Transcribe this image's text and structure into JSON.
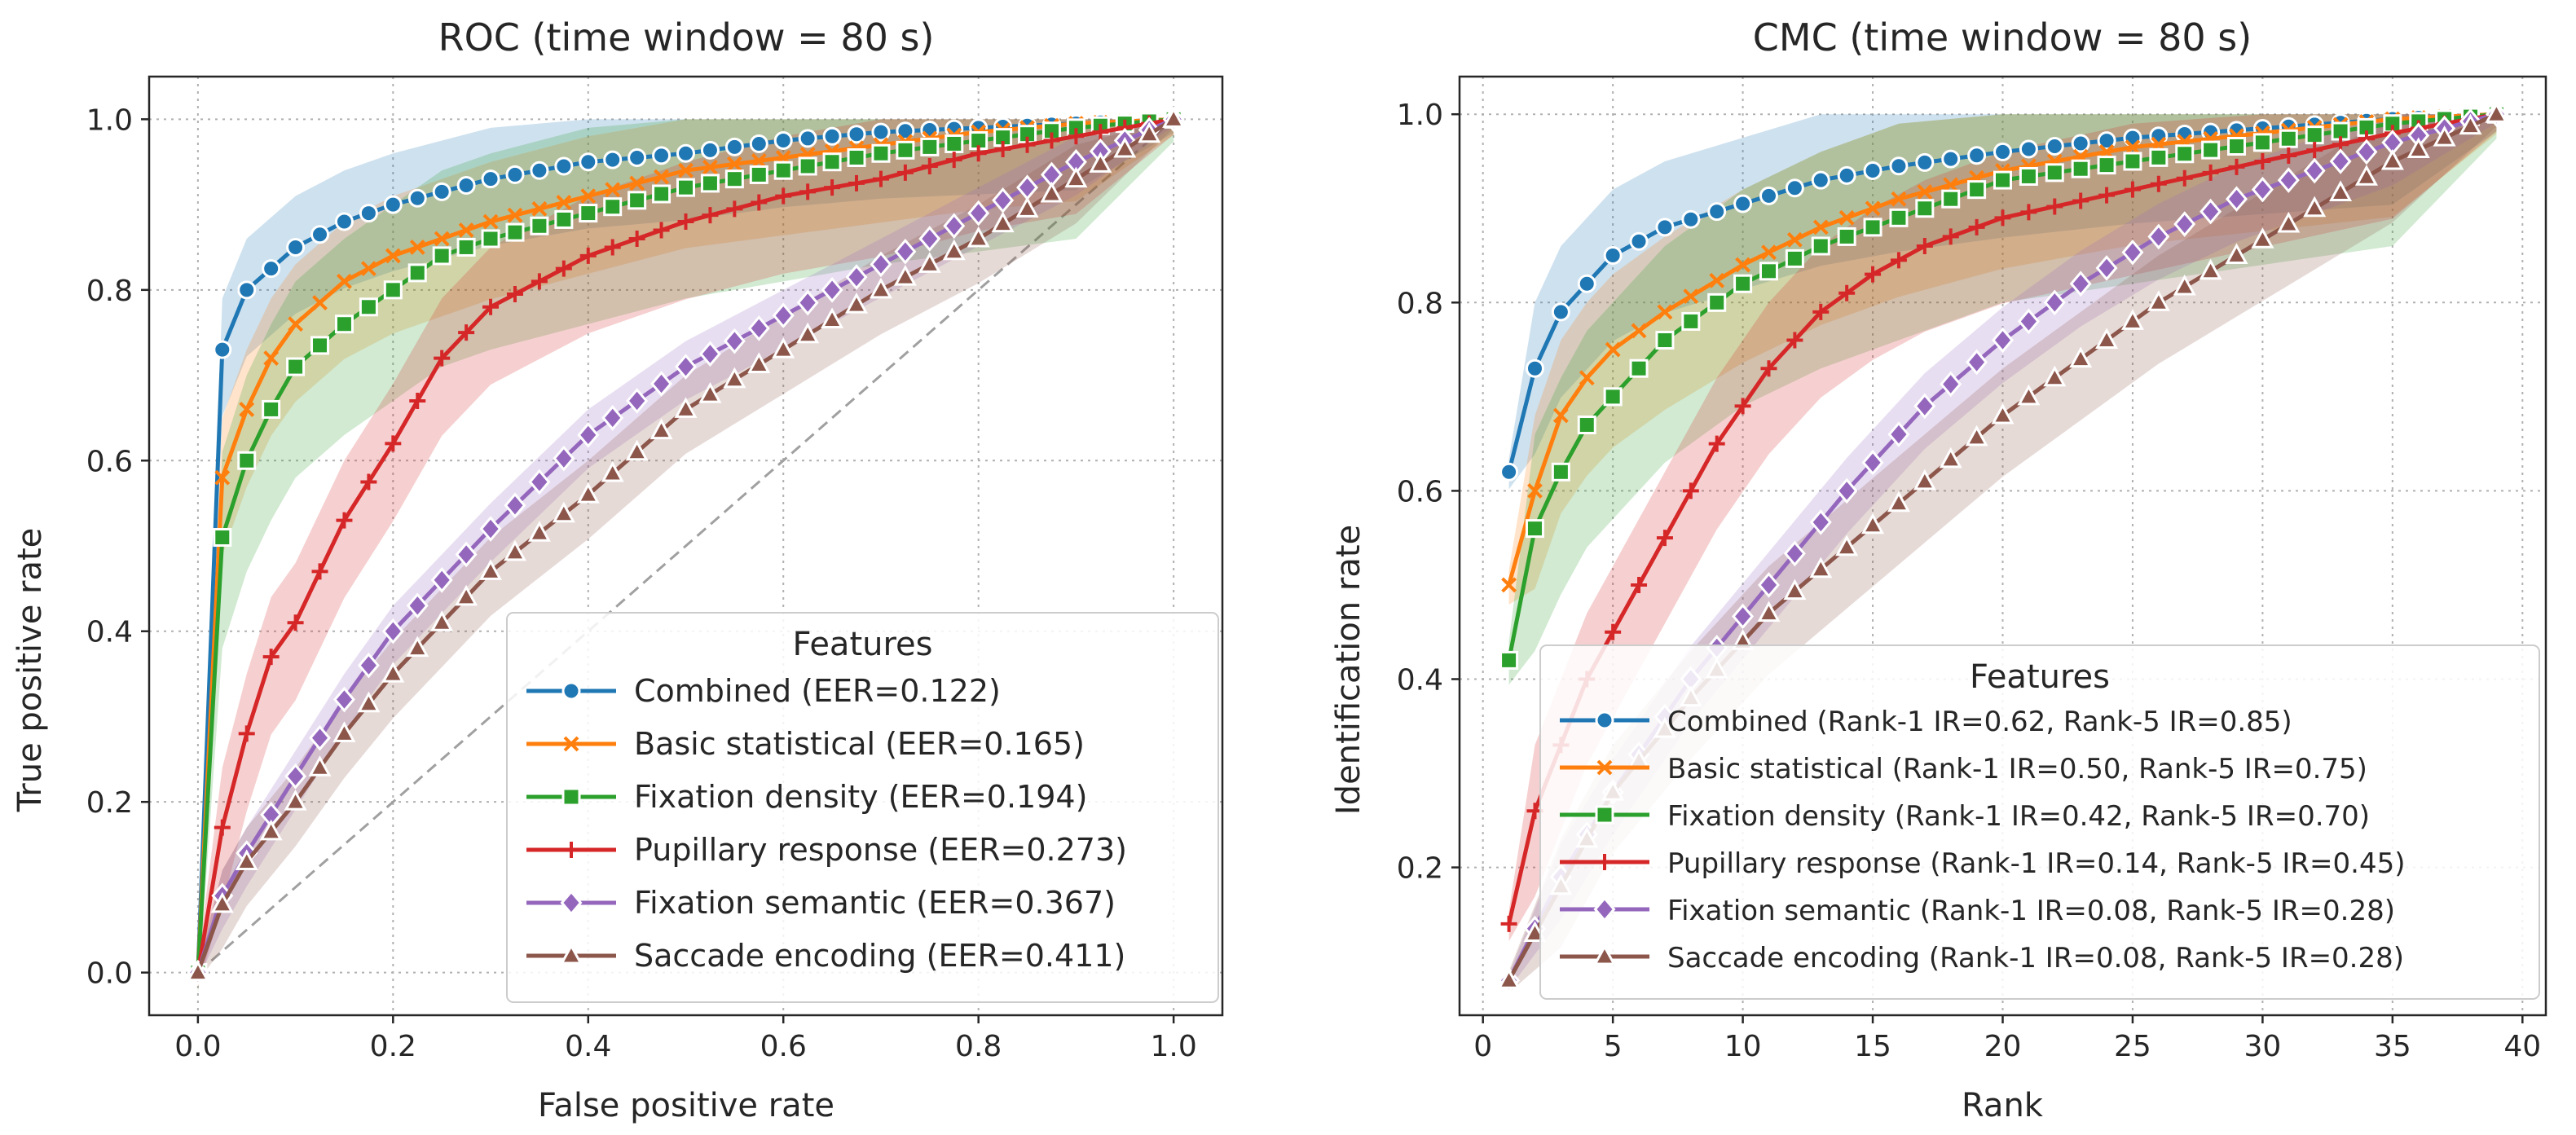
{
  "chart_data": [
    {
      "type": "line",
      "title": "ROC (time window = 80 s)",
      "xlabel": "False positive rate",
      "ylabel": "True positive rate",
      "xlim": [
        -0.05,
        1.05
      ],
      "ylim": [
        -0.05,
        1.05
      ],
      "xticks": [
        0.0,
        0.2,
        0.4,
        0.6,
        0.8,
        1.0
      ],
      "xtick_labels": [
        "0.0",
        "0.2",
        "0.4",
        "0.6",
        "0.8",
        "1.0"
      ],
      "yticks": [
        0.0,
        0.2,
        0.4,
        0.6,
        0.8,
        1.0
      ],
      "ytick_labels": [
        "0.0",
        "0.2",
        "0.4",
        "0.6",
        "0.8",
        "1.0"
      ],
      "grid": true,
      "diagonal": true,
      "legend_title": "Features",
      "legend_position": "lower-right",
      "series": [
        {
          "name": "Combined (EER=0.122)",
          "color": "#1f77b4",
          "marker": "circle",
          "x": [
            0,
            0.025,
            0.05,
            0.1,
            0.15,
            0.2,
            0.3,
            0.4,
            0.5,
            0.6,
            0.7,
            0.8,
            0.9,
            1.0
          ],
          "y": [
            0,
            0.73,
            0.8,
            0.85,
            0.88,
            0.9,
            0.93,
            0.95,
            0.96,
            0.975,
            0.985,
            0.99,
            0.995,
            1.0
          ],
          "band": 0.06
        },
        {
          "name": "Basic statistical (EER=0.165)",
          "color": "#ff7f0e",
          "marker": "x",
          "x": [
            0,
            0.025,
            0.05,
            0.075,
            0.1,
            0.15,
            0.2,
            0.3,
            0.4,
            0.5,
            0.6,
            0.7,
            0.8,
            0.9,
            1.0
          ],
          "y": [
            0,
            0.58,
            0.66,
            0.72,
            0.76,
            0.81,
            0.84,
            0.88,
            0.91,
            0.94,
            0.955,
            0.97,
            0.985,
            0.995,
            1.0
          ],
          "band": 0.07
        },
        {
          "name": "Fixation density (EER=0.194)",
          "color": "#2ca02c",
          "marker": "square",
          "x": [
            0,
            0.025,
            0.05,
            0.075,
            0.1,
            0.15,
            0.2,
            0.25,
            0.3,
            0.4,
            0.5,
            0.6,
            0.7,
            0.8,
            0.9,
            1.0
          ],
          "y": [
            0,
            0.51,
            0.6,
            0.66,
            0.71,
            0.76,
            0.8,
            0.84,
            0.86,
            0.89,
            0.92,
            0.94,
            0.96,
            0.975,
            0.99,
            1.0
          ],
          "band": 0.1
        },
        {
          "name": "Pupillary response (EER=0.273)",
          "color": "#d62728",
          "marker": "plus",
          "x": [
            0,
            0.025,
            0.05,
            0.075,
            0.1,
            0.15,
            0.2,
            0.25,
            0.3,
            0.35,
            0.4,
            0.5,
            0.6,
            0.7,
            0.8,
            0.9,
            1.0
          ],
          "y": [
            0,
            0.17,
            0.28,
            0.37,
            0.41,
            0.53,
            0.62,
            0.72,
            0.78,
            0.81,
            0.84,
            0.88,
            0.91,
            0.93,
            0.96,
            0.98,
            1.0
          ],
          "band": 0.07
        },
        {
          "name": "Fixation semantic (EER=0.367)",
          "color": "#9467bd",
          "marker": "diamond",
          "x": [
            0,
            0.025,
            0.05,
            0.1,
            0.15,
            0.2,
            0.3,
            0.4,
            0.5,
            0.6,
            0.7,
            0.8,
            0.9,
            1.0
          ],
          "y": [
            0,
            0.09,
            0.14,
            0.23,
            0.32,
            0.4,
            0.52,
            0.63,
            0.71,
            0.77,
            0.83,
            0.89,
            0.95,
            1.0
          ],
          "band": 0.03
        },
        {
          "name": "Saccade encoding (EER=0.411)",
          "color": "#8c564b",
          "marker": "triangle",
          "x": [
            0,
            0.025,
            0.05,
            0.1,
            0.15,
            0.2,
            0.3,
            0.4,
            0.5,
            0.6,
            0.7,
            0.8,
            0.9,
            1.0
          ],
          "y": [
            0,
            0.08,
            0.13,
            0.2,
            0.28,
            0.35,
            0.47,
            0.56,
            0.66,
            0.73,
            0.8,
            0.86,
            0.93,
            1.0
          ],
          "band": 0.04
        }
      ]
    },
    {
      "type": "line",
      "title": "CMC (time window = 80 s)",
      "xlabel": "Rank",
      "ylabel": "Identification rate",
      "xlim": [
        -0.9,
        40.9
      ],
      "ylim": [
        0.043,
        1.04
      ],
      "xticks": [
        0,
        5,
        10,
        15,
        20,
        25,
        30,
        35,
        40
      ],
      "xtick_labels": [
        "0",
        "5",
        "10",
        "15",
        "20",
        "25",
        "30",
        "35",
        "40"
      ],
      "yticks": [
        0.2,
        0.4,
        0.6,
        0.8,
        1.0
      ],
      "ytick_labels": [
        "0.2",
        "0.4",
        "0.6",
        "0.8",
        "1.0"
      ],
      "grid": true,
      "legend_title": "Features",
      "legend_position": "lower-right",
      "series": [
        {
          "name": "Combined (Rank-1 IR=0.62, Rank-5 IR=0.85)",
          "color": "#1f77b4",
          "marker": "circle",
          "x": [
            1,
            2,
            3,
            4,
            5,
            7,
            10,
            13,
            16,
            20,
            25,
            30,
            35,
            39
          ],
          "y": [
            0.62,
            0.73,
            0.79,
            0.82,
            0.85,
            0.88,
            0.905,
            0.93,
            0.945,
            0.96,
            0.975,
            0.985,
            0.995,
            1.0
          ],
          "band": 0.07
        },
        {
          "name": "Basic statistical (Rank-1 IR=0.50, Rank-5 IR=0.75)",
          "color": "#ff7f0e",
          "marker": "x",
          "x": [
            1,
            2,
            3,
            4,
            5,
            7,
            10,
            13,
            16,
            20,
            25,
            30,
            35,
            39
          ],
          "y": [
            0.5,
            0.6,
            0.68,
            0.72,
            0.75,
            0.79,
            0.84,
            0.88,
            0.91,
            0.94,
            0.965,
            0.98,
            0.995,
            1.0
          ],
          "band": 0.08
        },
        {
          "name": "Fixation density (Rank-1 IR=0.42, Rank-5 IR=0.70)",
          "color": "#2ca02c",
          "marker": "square",
          "x": [
            1,
            2,
            3,
            4,
            5,
            7,
            10,
            13,
            16,
            20,
            25,
            30,
            35,
            39
          ],
          "y": [
            0.42,
            0.56,
            0.62,
            0.67,
            0.7,
            0.76,
            0.82,
            0.86,
            0.89,
            0.93,
            0.95,
            0.97,
            0.99,
            1.0
          ],
          "band": 0.1
        },
        {
          "name": "Pupillary response (Rank-1 IR=0.14, Rank-5 IR=0.45)",
          "color": "#d62728",
          "marker": "plus",
          "x": [
            1,
            2,
            3,
            4,
            5,
            7,
            9,
            11,
            13,
            15,
            17,
            20,
            25,
            30,
            35,
            39
          ],
          "y": [
            0.14,
            0.26,
            0.33,
            0.4,
            0.45,
            0.55,
            0.65,
            0.73,
            0.79,
            0.83,
            0.86,
            0.89,
            0.92,
            0.95,
            0.98,
            1.0
          ],
          "band": 0.07
        },
        {
          "name": "Fixation semantic (Rank-1 IR=0.08, Rank-5 IR=0.28)",
          "color": "#9467bd",
          "marker": "diamond",
          "x": [
            1,
            3,
            5,
            8,
            11,
            14,
            17,
            20,
            23,
            26,
            29,
            32,
            35,
            39
          ],
          "y": [
            0.08,
            0.19,
            0.28,
            0.4,
            0.5,
            0.6,
            0.69,
            0.76,
            0.82,
            0.87,
            0.91,
            0.94,
            0.97,
            1.0
          ],
          "band": 0.035
        },
        {
          "name": "Saccade encoding (Rank-1 IR=0.08, Rank-5 IR=0.28)",
          "color": "#8c564b",
          "marker": "triangle",
          "x": [
            1,
            3,
            5,
            8,
            11,
            14,
            17,
            20,
            23,
            26,
            29,
            32,
            35,
            39
          ],
          "y": [
            0.08,
            0.18,
            0.28,
            0.38,
            0.47,
            0.54,
            0.61,
            0.68,
            0.74,
            0.8,
            0.85,
            0.9,
            0.95,
            1.0
          ],
          "band": 0.05
        }
      ]
    }
  ]
}
